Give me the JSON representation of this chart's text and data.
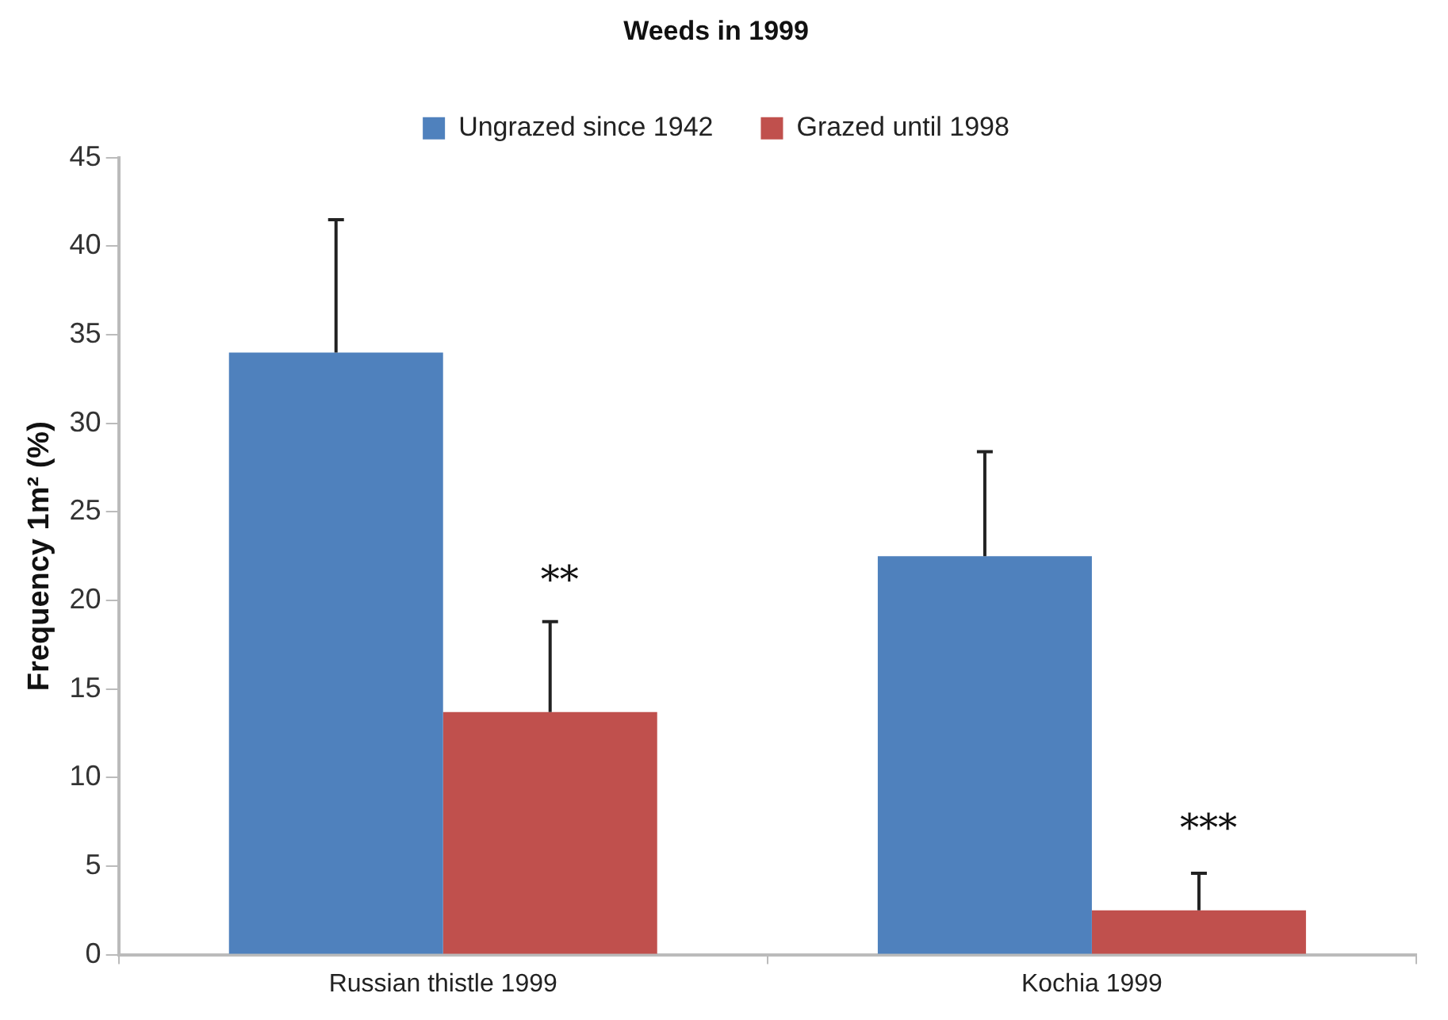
{
  "chart_data": {
    "type": "bar",
    "title": "Weeds in 1999",
    "ylabel": "Frequency 1m² (%)",
    "categories": [
      "Russian thistle 1999",
      "Kochia 1999"
    ],
    "series": [
      {
        "name": "Ungrazed since 1942",
        "color": "#4f81bd",
        "values": [
          34,
          22.5
        ],
        "errors": [
          [
            34,
            41.5
          ],
          [
            22.5,
            28.4
          ]
        ]
      },
      {
        "name": "Grazed until 1998",
        "color": "#c0504d",
        "values": [
          13.7,
          2.5
        ],
        "errors": [
          [
            13.7,
            18.8
          ],
          [
            2.5,
            4.6
          ]
        ]
      }
    ],
    "annotations": [
      {
        "text": "**",
        "x": "Russian thistle 1999",
        "y": 21
      },
      {
        "text": "***",
        "x": "Kochia 1999",
        "y": 7
      }
    ],
    "ylim": [
      0,
      45
    ],
    "yticks": [
      0,
      5,
      10,
      15,
      20,
      25,
      30,
      35,
      40,
      45
    ],
    "grid": false,
    "legend": "top"
  }
}
